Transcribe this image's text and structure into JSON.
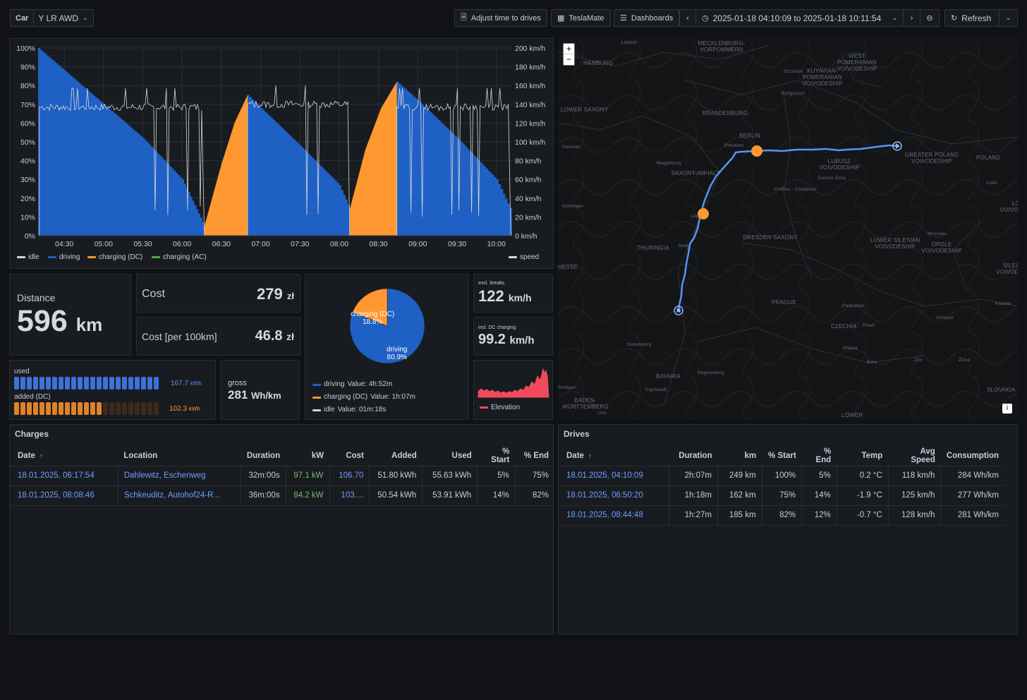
{
  "topbar": {
    "car_label": "Car",
    "car_value": "Y LR AWD",
    "adjust_label": "Adjust time to drives",
    "teslamate_label": "TeslaMate",
    "dashboards_label": "Dashboards",
    "time_range": "2025-01-18 04:10:09 to 2025-01-18 10:11:54",
    "refresh_label": "Refresh"
  },
  "timeline": {
    "left_ticks": [
      "100%",
      "90%",
      "80%",
      "70%",
      "60%",
      "50%",
      "40%",
      "30%",
      "20%",
      "10%",
      "0%"
    ],
    "right_ticks": [
      "200 km/h",
      "180 km/h",
      "160 km/h",
      "140 km/h",
      "120 km/h",
      "100 km/h",
      "80 km/h",
      "60 km/h",
      "40 km/h",
      "20 km/h",
      "0 km/h"
    ],
    "x_ticks": [
      "04:30",
      "05:00",
      "05:30",
      "06:00",
      "06:30",
      "07:00",
      "07:30",
      "08:00",
      "08:30",
      "09:00",
      "09:30",
      "10:00"
    ],
    "legend": [
      "idle",
      "driving",
      "charging (DC)",
      "charging (AC)"
    ],
    "legend_right": "speed",
    "colors": {
      "idle": "#c8d6f0",
      "driving": "#1f60c4",
      "charging_dc": "#ff9830",
      "charging_ac": "#56a64b",
      "speed": "#d9d9d9"
    }
  },
  "chart_data": [
    {
      "type": "area",
      "title": "",
      "x": [
        "04:10",
        "04:30",
        "05:00",
        "05:30",
        "06:00",
        "06:17",
        "06:50",
        "07:00",
        "07:30",
        "08:00",
        "08:08",
        "08:44",
        "09:00",
        "09:30",
        "10:00",
        "10:12"
      ],
      "series": [
        {
          "name": "driving",
          "unit": "%",
          "segments": [
            {
              "x": [
                "04:10",
                "04:30",
                "05:00",
                "05:30",
                "06:00",
                "06:17"
              ],
              "values": [
                100,
                88,
                70,
                52,
                30,
                5
              ]
            },
            {
              "x": [
                "06:50",
                "07:00",
                "07:30",
                "08:00",
                "08:08"
              ],
              "values": [
                75,
                68,
                48,
                27,
                14
              ]
            },
            {
              "x": [
                "08:44",
                "09:00",
                "09:30",
                "10:00",
                "10:12"
              ],
              "values": [
                82,
                72,
                52,
                30,
                12
              ]
            }
          ]
        },
        {
          "name": "charging (DC)",
          "unit": "%",
          "segments": [
            {
              "x": [
                "06:17",
                "06:30",
                "06:40",
                "06:50"
              ],
              "values": [
                5,
                38,
                60,
                75
              ]
            },
            {
              "x": [
                "08:08",
                "08:20",
                "08:32",
                "08:44"
              ],
              "values": [
                14,
                46,
                68,
                82
              ]
            }
          ]
        },
        {
          "name": "speed",
          "unit": "km/h",
          "approx_cruise": [
            137,
            140,
            137
          ]
        }
      ],
      "ylim": [
        0,
        100
      ],
      "y2lim": [
        0,
        200
      ],
      "ylabel": "",
      "xlabel": ""
    },
    {
      "type": "pie",
      "categories": [
        "driving",
        "charging (DC)",
        "idle"
      ],
      "values": [
        80.9,
        18.8,
        0.3
      ],
      "labels": [
        "driving\n80.9%",
        "charging (DC)\n18.8%"
      ]
    }
  ],
  "stats": {
    "distance_title": "Distance",
    "distance_value": "596",
    "distance_unit": "km",
    "cost_title": "Cost",
    "cost_value": "279",
    "cost_unit": "zł",
    "cost100_title": "Cost [per 100km]",
    "cost100_value": "46.8",
    "cost100_unit": "zł",
    "speed_excl_title": "excl. breaks",
    "speed_excl_value": "122",
    "speed_excl_unit": "km/h",
    "speed_incl_title": "incl. DC charging",
    "speed_incl_value": "99.2",
    "speed_incl_unit": "km/h",
    "energy_used_title": "used",
    "energy_used_value": "167.7",
    "energy_used_unit": "kWh",
    "energy_used_fraction": 1.0,
    "energy_added_title": "added (DC)",
    "energy_added_value": "102.3",
    "energy_added_unit": "kWh",
    "energy_added_fraction": 0.61,
    "gross_title": "gross",
    "gross_value": "281",
    "gross_unit": "Wh/km",
    "elevation_label": "Elevation"
  },
  "pie": {
    "label_driving": "driving",
    "pct_driving": "80.9%",
    "label_charging": "charging (DC)",
    "pct_charging": "18.8%",
    "legend": [
      {
        "name": "driving",
        "value": "Value: 4h:52m",
        "color": "#1f60c4"
      },
      {
        "name": "charging (DC)",
        "value": "Value: 1h:07m",
        "color": "#ff9830"
      },
      {
        "name": "idle",
        "value": "Value: 01m:18s",
        "color": "#c8d6f0"
      }
    ]
  },
  "map": {
    "zoom_in": "+",
    "zoom_out": "−",
    "info": "i",
    "labels": [
      "Lübeck",
      "MECKLENBURG-VORPOMMERN",
      "HAMBURG",
      "WEST POMERANIAN VOIVODESHIP",
      "KUYAVIAN-POMERANIAN VOIVODESHIP",
      "Bydgoszcz",
      "Szczecin",
      "LOWER SAXONY",
      "BRANDENBURG",
      "BERLIN",
      "Potsdam",
      "Hanover",
      "Magdeburg",
      "SAXONY-ANHALT",
      "LUBUSZ VOIVODESHIP",
      "Zielona Góra",
      "GREATER POLAND VOIVODESHIP",
      "POLAND",
      "Cottbus - Chóśebuz",
      "Göttingen",
      "Leipzig",
      "Łódź",
      "ŁÓDŹ VOIVODESHIP",
      "Wrocław",
      "OPOLE VOIVODESHIP",
      "DRESDEN SAXONY",
      "LOWER SILESIAN VOIVODESHIP",
      "THURINGIA",
      "Jena",
      "HESSE",
      "SILESIAN VOIVODESHIP",
      "Ostrava",
      "PRAGUE",
      "Pardubice",
      "Kraków",
      "CZECHIA",
      "Plzeň",
      "Jihlava",
      "Nuremberg",
      "Brno",
      "Zlín",
      "Žilina",
      "BAVARIA",
      "Regensburg",
      "Ingolstadt",
      "Stuttgart",
      "BADEN-WÜRTTEMBERG",
      "Ulm",
      "SLOVAKIA",
      "LOWER"
    ]
  },
  "charges": {
    "title": "Charges",
    "columns": [
      "Date",
      "Location",
      "Duration",
      "kW",
      "Cost",
      "Added",
      "Used",
      "% Start",
      "% End"
    ],
    "sort_icon": "↑",
    "rows": [
      [
        "18.01.2025, 06:17:54",
        "Dahlewitz, Eschenweg",
        "32m:00s",
        "97.1 kW",
        "106.70",
        "51.80 kWh",
        "55.63 kWh",
        "5%",
        "75%"
      ],
      [
        "18.01.2025, 08:08:46",
        "Schkeuditz, Autohof24-R...",
        "36m:00s",
        "84.2 kW",
        "103....",
        "50.54 kWh",
        "53.91 kWh",
        "14%",
        "82%"
      ]
    ]
  },
  "drives": {
    "title": "Drives",
    "columns": [
      "Date",
      "Duration",
      "km",
      "% Start",
      "% End",
      "Temp",
      "Avg Speed",
      "Consumption"
    ],
    "sort_icon": "↑",
    "rows": [
      [
        "18.01.2025, 04:10:09",
        "2h:07m",
        "249 km",
        "100%",
        "5%",
        "0.2 °C",
        "118 km/h",
        "284 Wh/km"
      ],
      [
        "18.01.2025, 06:50:20",
        "1h:18m",
        "162 km",
        "75%",
        "14%",
        "-1.9 °C",
        "125 km/h",
        "277 Wh/km"
      ],
      [
        "18.01.2025, 08:44:48",
        "1h:27m",
        "185 km",
        "82%",
        "12%",
        "-0.7 °C",
        "128 km/h",
        "281 Wh/km"
      ]
    ]
  }
}
